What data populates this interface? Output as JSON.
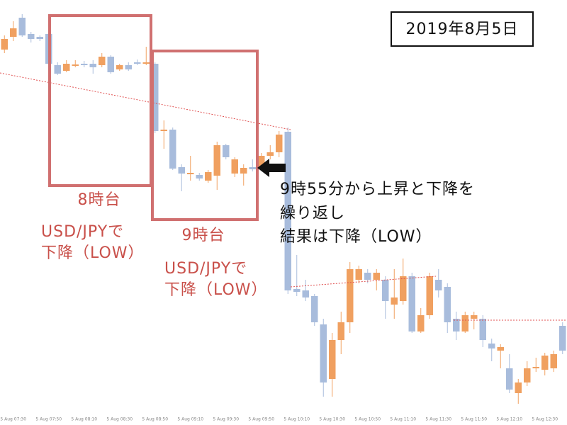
{
  "chart_data": {
    "type": "candlestick",
    "up_color": "#f0a060",
    "down_color": "#a8bcdc",
    "ylim": [
      0,
      600
    ],
    "categories": [
      null,
      "5 Aug 07:30",
      null,
      null,
      null,
      "5 Aug 07:50",
      null,
      null,
      null,
      "5 Aug 08:10",
      null,
      null,
      null,
      "5 Aug 08:30",
      null,
      null,
      null,
      "5 Aug 08:50",
      null,
      null,
      null,
      "5 Aug 09:10",
      null,
      null,
      null,
      "5 Aug 09:30",
      null,
      null,
      null,
      "5 Aug 09:50",
      null,
      null,
      null,
      "5 Aug 10:10",
      null,
      null,
      null,
      "5 Aug 10:30",
      null,
      null,
      null,
      "5 Aug 10:50",
      null,
      null,
      null,
      "5 Aug 11:10",
      null,
      null,
      null,
      "5 Aug 11:30",
      null,
      null,
      null,
      "5 Aug 11:50",
      null,
      null,
      null,
      "5 Aug 12:10",
      null,
      null,
      null,
      "5 Aug 12:30",
      null,
      null
    ],
    "open": [
      530,
      548,
      575,
      552,
      548,
      552,
      508,
      500,
      508,
      510,
      510,
      508,
      520,
      502,
      508,
      512,
      510,
      510,
      415,
      417,
      364,
      354,
      353,
      345,
      352,
      395,
      355,
      355,
      364,
      362,
      380,
      385,
      414,
      192,
      190,
      182,
      142,
      65,
      120,
      145,
      205,
      215,
      205,
      205,
      170,
      175,
      210,
      132,
      155,
      205,
      195,
      150,
      132,
      150,
      150,
      115,
      105,
      80,
      45,
      60,
      80,
      78,
      80,
      140
    ],
    "close": [
      545,
      560,
      550,
      545,
      545,
      510,
      496,
      510,
      509,
      508,
      505,
      520,
      498,
      508,
      502,
      510,
      512,
      415,
      417,
      362,
      355,
      356,
      348,
      357,
      395,
      378,
      375,
      363,
      361,
      380,
      385,
      410,
      190,
      188,
      180,
      145,
      60,
      120,
      145,
      220,
      220,
      205,
      215,
      175,
      180,
      210,
      132,
      155,
      210,
      190,
      145,
      132,
      155,
      155,
      120,
      108,
      110,
      50,
      60,
      80,
      82,
      98,
      100,
      105
    ],
    "high": [
      550,
      570,
      580,
      555,
      550,
      555,
      512,
      515,
      515,
      514,
      515,
      525,
      522,
      510,
      512,
      516,
      534,
      512,
      430,
      420,
      368,
      380,
      356,
      360,
      400,
      397,
      378,
      368,
      375,
      384,
      395,
      415,
      420,
      240,
      205,
      185,
      150,
      130,
      160,
      230,
      225,
      220,
      220,
      210,
      220,
      235,
      215,
      165,
      215,
      220,
      200,
      160,
      160,
      160,
      155,
      122,
      114,
      100,
      65,
      90,
      95,
      102,
      105,
      145
    ],
    "low": [
      525,
      542,
      548,
      540,
      542,
      505,
      494,
      498,
      505,
      505,
      496,
      505,
      496,
      500,
      500,
      508,
      508,
      412,
      390,
      360,
      330,
      345,
      345,
      342,
      332,
      375,
      350,
      338,
      358,
      360,
      375,
      378,
      185,
      182,
      175,
      140,
      40,
      40,
      100,
      130,
      200,
      200,
      190,
      150,
      150,
      170,
      130,
      130,
      150,
      180,
      130,
      120,
      130,
      135,
      110,
      90,
      80,
      45,
      30,
      55,
      75,
      70,
      75,
      100
    ],
    "annotations": [
      "2019年8月5日",
      "8時台",
      "USD/JPYで",
      "下降（LOW）",
      "9時台",
      "USD/JPYで",
      "下降（LOW）",
      "9時55分から上昇と下降を",
      "繰り返し",
      "結果は下降（LOW）"
    ]
  }
}
